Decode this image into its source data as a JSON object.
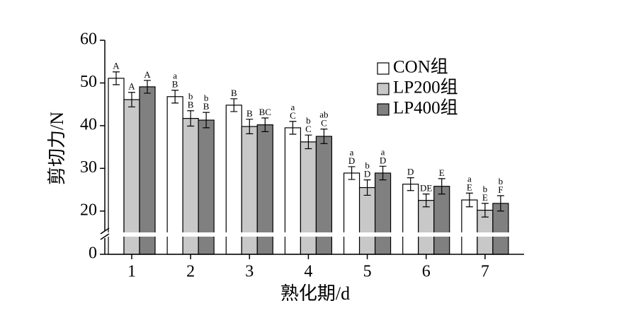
{
  "chart_data": {
    "type": "bar",
    "y_label": "剪切力/N",
    "x_label": "熟化期/d",
    "categories": [
      "1",
      "2",
      "3",
      "4",
      "5",
      "6",
      "7"
    ],
    "ylim": [
      0,
      60
    ],
    "yticks": [
      0,
      20,
      30,
      40,
      50,
      60
    ],
    "axis_break": [
      10,
      15
    ],
    "series": [
      {
        "name": "CON组",
        "color": "#ffffff",
        "values": [
          51.1,
          46.8,
          44.8,
          39.5,
          28.9,
          26.3,
          22.6
        ],
        "errors": [
          1.5,
          1.5,
          1.5,
          1.5,
          1.5,
          1.5,
          1.6
        ],
        "labels": [
          [
            "A"
          ],
          [
            "a",
            "B"
          ],
          [
            "B"
          ],
          [
            "a",
            "C"
          ],
          [
            "a",
            "D"
          ],
          [
            "D"
          ],
          [
            "a",
            "E"
          ]
        ]
      },
      {
        "name": "LP200组",
        "color": "#c8c8c8",
        "values": [
          46.1,
          41.7,
          39.8,
          36.2,
          25.5,
          22.5,
          20.2
        ],
        "errors": [
          1.7,
          1.8,
          1.7,
          1.6,
          1.8,
          1.5,
          1.6
        ],
        "labels": [
          [
            "A"
          ],
          [
            "b",
            "B"
          ],
          [
            "B"
          ],
          [
            "b",
            "C"
          ],
          [
            "b",
            "D"
          ],
          [
            "DE"
          ],
          [
            "b",
            "E"
          ]
        ]
      },
      {
        "name": "LP400组",
        "color": "#808080",
        "values": [
          49.1,
          41.3,
          40.2,
          37.5,
          28.9,
          25.8,
          21.8
        ],
        "errors": [
          1.5,
          1.8,
          1.6,
          1.7,
          1.6,
          1.8,
          1.8
        ],
        "labels": [
          [
            "A"
          ],
          [
            "b",
            "B"
          ],
          [
            "BC"
          ],
          [
            "ab",
            "C"
          ],
          [
            "a",
            "D"
          ],
          [
            "E"
          ],
          [
            "b",
            "F"
          ]
        ]
      }
    ]
  }
}
